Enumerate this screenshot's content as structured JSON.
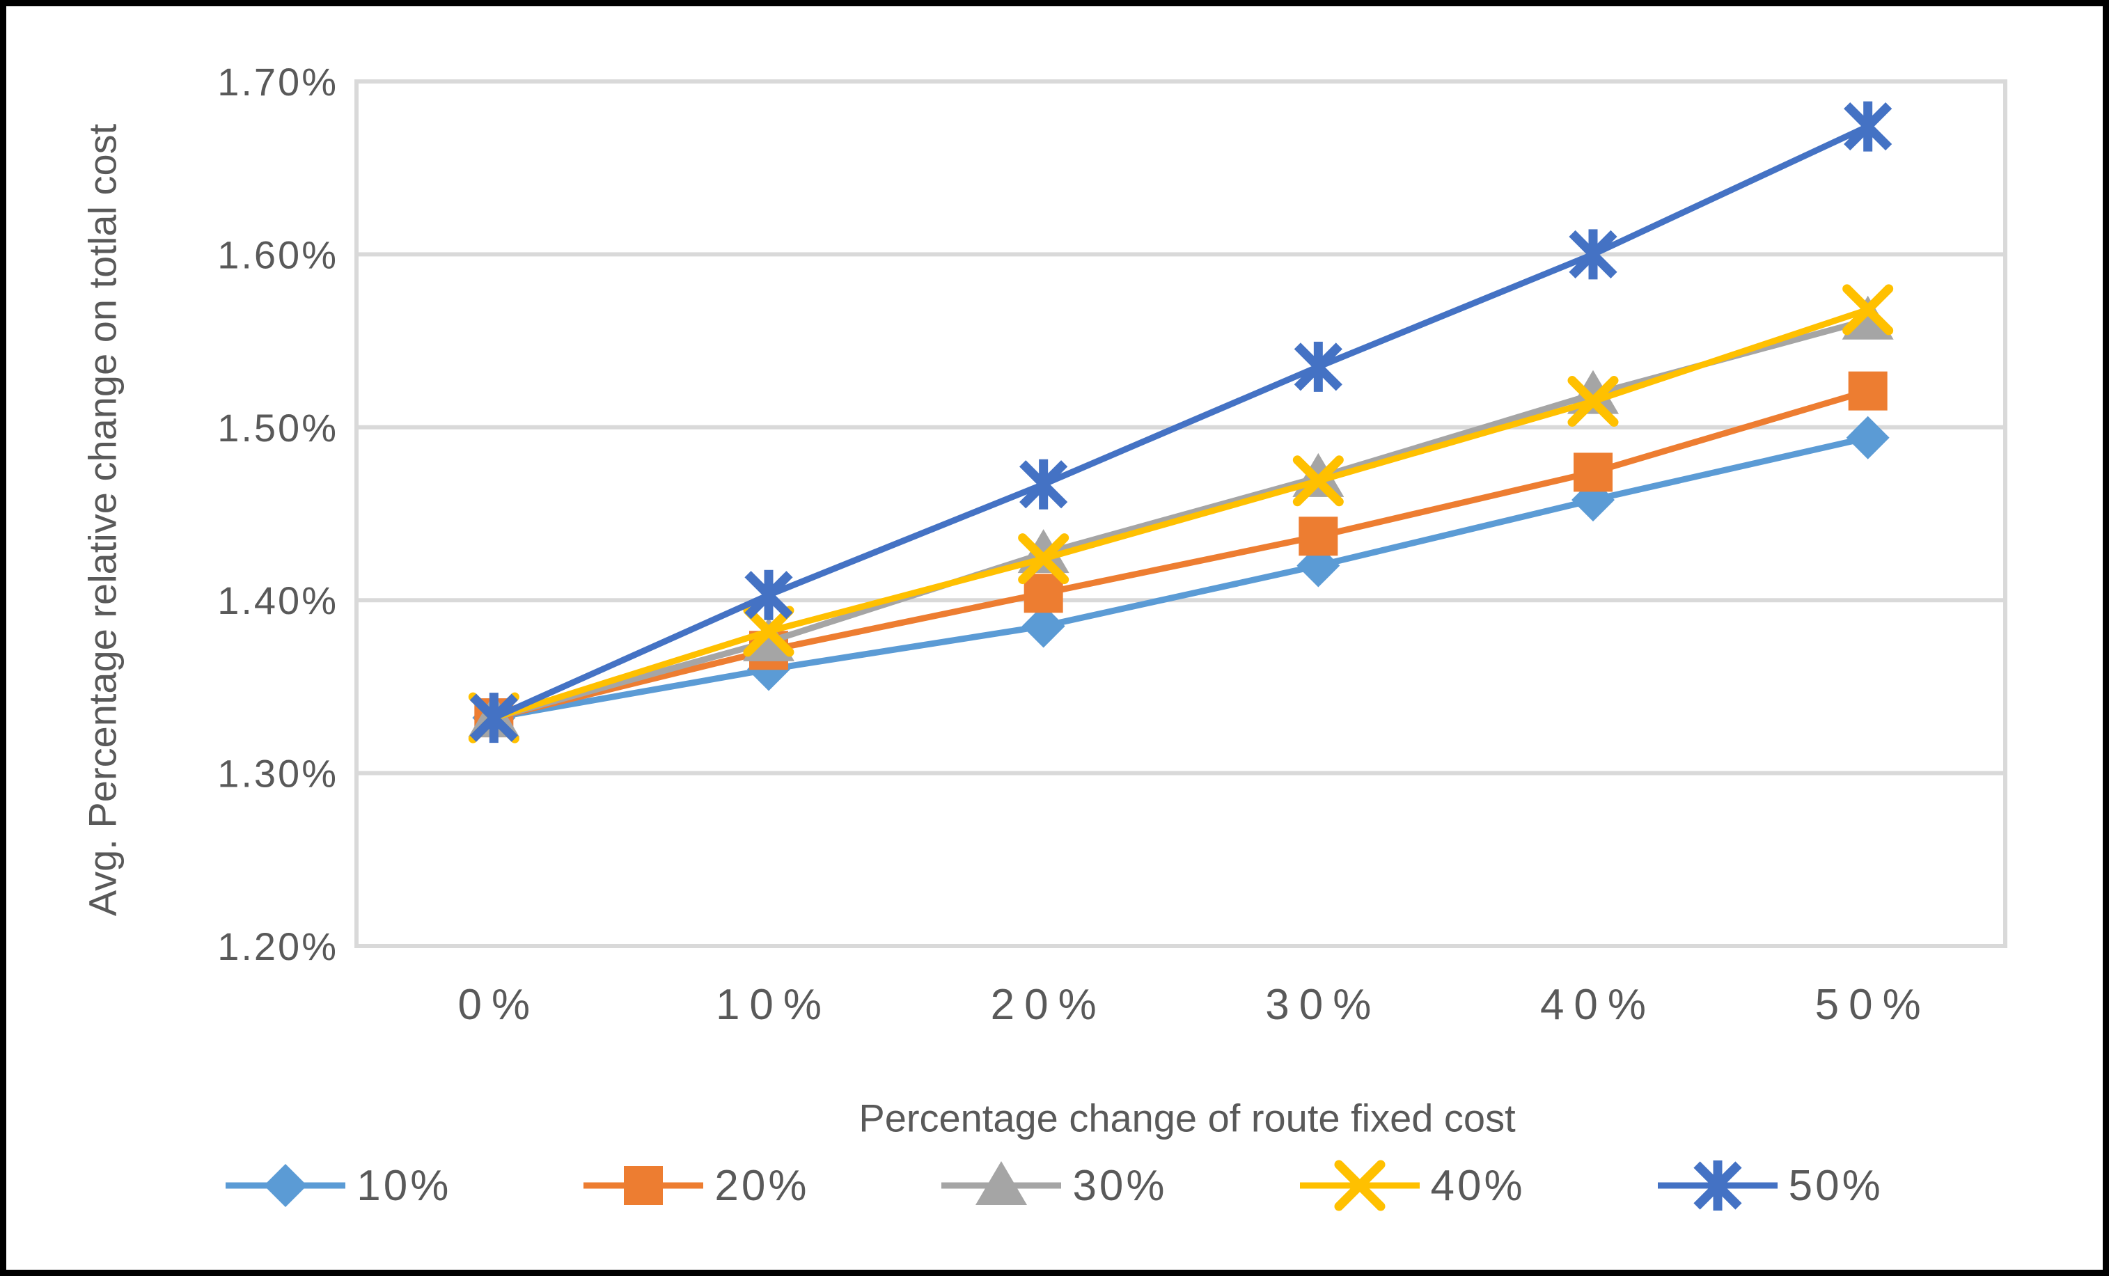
{
  "chart_data": {
    "type": "line",
    "xlabel": "Percentage change of route fixed cost",
    "ylabel": "Avg. Percentage relative change on totlal cost",
    "categories": [
      "0%",
      "10%",
      "20%",
      "30%",
      "40%",
      "50%"
    ],
    "series": [
      {
        "name": "10%",
        "marker": "diamond",
        "color": "#5B9BD5",
        "values": [
          1.332,
          1.36,
          1.385,
          1.42,
          1.458,
          1.494
        ]
      },
      {
        "name": "20%",
        "marker": "square",
        "color": "#ED7D31",
        "values": [
          1.332,
          1.371,
          1.404,
          1.437,
          1.474,
          1.521
        ]
      },
      {
        "name": "30%",
        "marker": "triangle",
        "color": "#A5A5A5",
        "values": [
          1.332,
          1.376,
          1.427,
          1.471,
          1.519,
          1.562
        ]
      },
      {
        "name": "40%",
        "marker": "x",
        "color": "#FFC000",
        "values": [
          1.332,
          1.382,
          1.424,
          1.469,
          1.515,
          1.568
        ]
      },
      {
        "name": "50%",
        "marker": "asterisk",
        "color": "#4472C4",
        "values": [
          1.332,
          1.403,
          1.467,
          1.535,
          1.6,
          1.674
        ]
      }
    ],
    "ylim": [
      1.2,
      1.7
    ],
    "ytick_step": 0.1,
    "ytick_labels": [
      "1.20%",
      "1.30%",
      "1.40%",
      "1.50%",
      "1.60%",
      "1.70%"
    ],
    "grid": "horizontal",
    "legend_position": "bottom",
    "colors": {
      "gridline": "#D9D9D9",
      "axis_text": "#595959",
      "background": "#FFFFFF",
      "frame_border": "#000000"
    }
  }
}
